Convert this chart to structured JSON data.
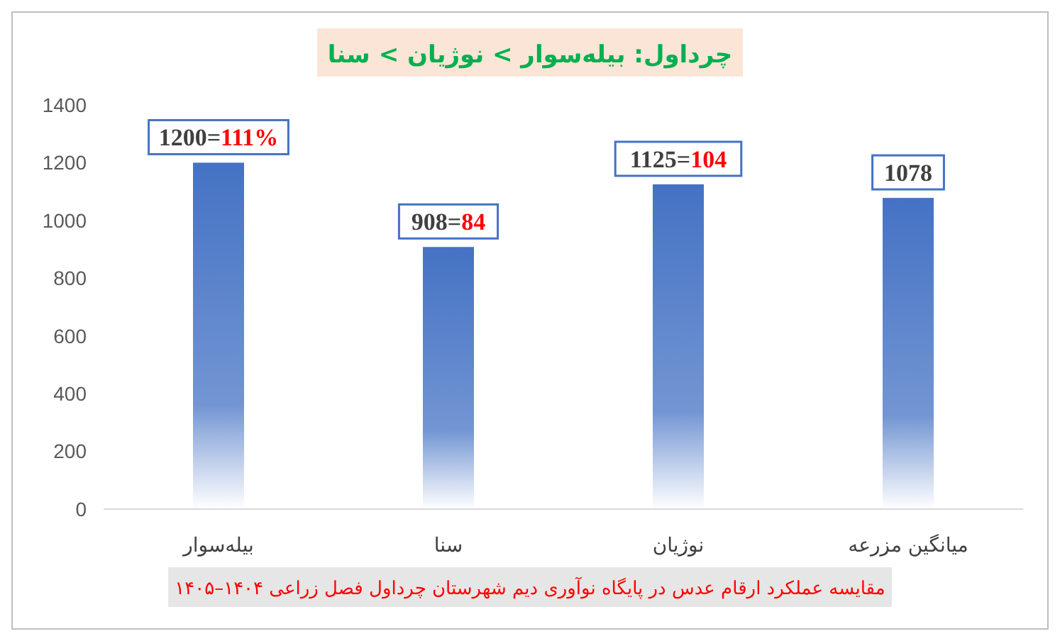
{
  "chart_data": {
    "type": "bar",
    "title": "چرداول: بیله‌سوار > نوژیان > سنا",
    "categories": [
      "بیله‌سوار",
      "سنا",
      "نوژیان",
      "میانگین مزرعه"
    ],
    "values": [
      1200,
      908,
      1125,
      1078
    ],
    "color": "#4472c4",
    "value_labels": [
      "1200=111%",
      "908=84",
      "1125=104",
      "1078"
    ],
    "ylim": [
      0,
      1400
    ],
    "yticks": [
      0,
      200,
      400,
      600,
      800,
      1000,
      1200,
      1400
    ],
    "grid": false,
    "annotations": [
      "مقایسه عملکرد ارقام عدس در پایگاه نوآوری دیم شهرستان چرداول فصل زراعی ۱۴۰۴–۱۴۰۵"
    ]
  }
}
